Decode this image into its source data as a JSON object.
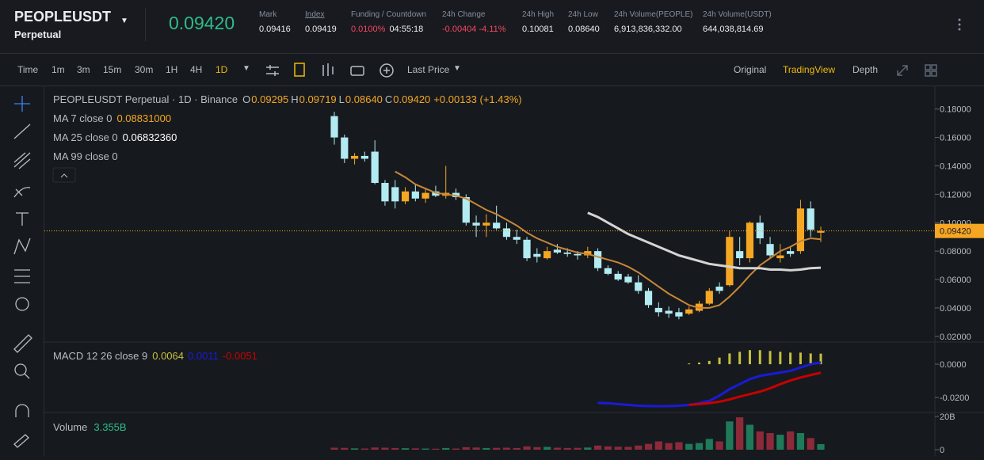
{
  "header": {
    "symbol": "PEOPLEUSDT",
    "contract": "Perpetual",
    "last_price": "0.09420",
    "stats": [
      {
        "label": "Mark",
        "value": "0.09416"
      },
      {
        "label": "Index",
        "value": "0.09419"
      },
      {
        "label": "Funding / Countdown",
        "value": "0.0100%",
        "value2": "04:55:18"
      },
      {
        "label": "24h Change",
        "value": "-0.00404 -4.11%"
      },
      {
        "label": "24h High",
        "value": "0.10081"
      },
      {
        "label": "24h Low",
        "value": "0.08640"
      },
      {
        "label": "24h Volume(PEOPLE)",
        "value": "6,913,836,332.00"
      },
      {
        "label": "24h Volume(USDT)",
        "value": "644,038,814.69"
      }
    ]
  },
  "toolbar": {
    "label": "Time",
    "intervals": [
      "1m",
      "3m",
      "15m",
      "30m",
      "1H",
      "4H",
      "1D"
    ],
    "active_interval": "1D",
    "price_type": "Last Price",
    "views": [
      "Original",
      "TradingView",
      "Depth"
    ],
    "active_view": "TradingView"
  },
  "chart_data": {
    "type": "candlestick",
    "legend": {
      "title": "PEOPLEUSDT Perpetual · 1D · Binance",
      "o_label": "O",
      "o": "0.09295",
      "h_label": "H",
      "h": "0.09719",
      "l_label": "L",
      "l": "0.08640",
      "c_label": "C",
      "c": "0.09420",
      "change": "+0.00133 (+1.43%)",
      "ma7_label": "MA 7 close 0",
      "ma7": "0.08831000",
      "ma25_label": "MA 25 close 0",
      "ma25": "0.06832360",
      "ma99_label": "MA 99 close 0"
    },
    "up_color": "#f5a623",
    "down_color": "#b2ebf2",
    "candles": [
      [
        0.175,
        0.178,
        0.155,
        0.16
      ],
      [
        0.16,
        0.162,
        0.142,
        0.145
      ],
      [
        0.145,
        0.149,
        0.141,
        0.147
      ],
      [
        0.147,
        0.15,
        0.143,
        0.145
      ],
      [
        0.15,
        0.158,
        0.127,
        0.128
      ],
      [
        0.128,
        0.13,
        0.112,
        0.115
      ],
      [
        0.125,
        0.13,
        0.11,
        0.115
      ],
      [
        0.115,
        0.125,
        0.113,
        0.122
      ],
      [
        0.122,
        0.127,
        0.115,
        0.117
      ],
      [
        0.117,
        0.124,
        0.114,
        0.121
      ],
      [
        0.122,
        0.126,
        0.118,
        0.119
      ],
      [
        0.119,
        0.14,
        0.117,
        0.121
      ],
      [
        0.121,
        0.124,
        0.116,
        0.118
      ],
      [
        0.118,
        0.12,
        0.098,
        0.1
      ],
      [
        0.1,
        0.105,
        0.09,
        0.098
      ],
      [
        0.098,
        0.106,
        0.09,
        0.1
      ],
      [
        0.1,
        0.112,
        0.095,
        0.096
      ],
      [
        0.096,
        0.1,
        0.088,
        0.09
      ],
      [
        0.09,
        0.095,
        0.085,
        0.088
      ],
      [
        0.088,
        0.09,
        0.073,
        0.075
      ],
      [
        0.078,
        0.082,
        0.072,
        0.076
      ],
      [
        0.075,
        0.083,
        0.074,
        0.08
      ],
      [
        0.081,
        0.085,
        0.078,
        0.079
      ],
      [
        0.079,
        0.082,
        0.076,
        0.078
      ],
      [
        0.078,
        0.08,
        0.074,
        0.077
      ],
      [
        0.077,
        0.083,
        0.075,
        0.08
      ],
      [
        0.08,
        0.082,
        0.066,
        0.068
      ],
      [
        0.068,
        0.07,
        0.063,
        0.064
      ],
      [
        0.064,
        0.066,
        0.059,
        0.06
      ],
      [
        0.062,
        0.064,
        0.057,
        0.058
      ],
      [
        0.058,
        0.063,
        0.05,
        0.052
      ],
      [
        0.052,
        0.054,
        0.04,
        0.042
      ],
      [
        0.04,
        0.044,
        0.034,
        0.037
      ],
      [
        0.038,
        0.041,
        0.033,
        0.036
      ],
      [
        0.037,
        0.04,
        0.032,
        0.034
      ],
      [
        0.036,
        0.041,
        0.035,
        0.039
      ],
      [
        0.038,
        0.045,
        0.037,
        0.043
      ],
      [
        0.043,
        0.054,
        0.042,
        0.052
      ],
      [
        0.055,
        0.058,
        0.05,
        0.052
      ],
      [
        0.056,
        0.094,
        0.055,
        0.09
      ],
      [
        0.08,
        0.09,
        0.07,
        0.075
      ],
      [
        0.075,
        0.101,
        0.072,
        0.1
      ],
      [
        0.1,
        0.105,
        0.085,
        0.089
      ],
      [
        0.085,
        0.09,
        0.075,
        0.077
      ],
      [
        0.075,
        0.085,
        0.072,
        0.077
      ],
      [
        0.08,
        0.083,
        0.076,
        0.078
      ],
      [
        0.08,
        0.116,
        0.078,
        0.11
      ],
      [
        0.11,
        0.115,
        0.09,
        0.095
      ],
      [
        0.09295,
        0.09719,
        0.0864,
        0.0942
      ]
    ],
    "ma_series": [
      {
        "name": "MA 7",
        "color": "#c8873a",
        "values": [
          null,
          null,
          null,
          null,
          null,
          null,
          0.136,
          0.132,
          0.127,
          0.124,
          0.121,
          0.12,
          0.119,
          0.117,
          0.113,
          0.109,
          0.106,
          0.102,
          0.098,
          0.093,
          0.089,
          0.086,
          0.083,
          0.081,
          0.079,
          0.078,
          0.076,
          0.074,
          0.072,
          0.069,
          0.065,
          0.06,
          0.055,
          0.05,
          0.046,
          0.042,
          0.04,
          0.04,
          0.042,
          0.048,
          0.055,
          0.063,
          0.07,
          0.075,
          0.08,
          0.083,
          0.087,
          0.089,
          0.0883
        ]
      },
      {
        "name": "MA 25",
        "color": "#d4d4d4",
        "values": [
          null,
          null,
          null,
          null,
          null,
          null,
          null,
          null,
          null,
          null,
          null,
          null,
          null,
          null,
          null,
          null,
          null,
          null,
          null,
          null,
          null,
          null,
          null,
          null,
          null,
          0.107,
          0.104,
          0.1,
          0.096,
          0.092,
          0.089,
          0.086,
          0.083,
          0.08,
          0.077,
          0.075,
          0.073,
          0.071,
          0.07,
          0.069,
          0.068,
          0.068,
          0.068,
          0.067,
          0.067,
          0.0665,
          0.067,
          0.068,
          0.0683
        ]
      }
    ],
    "ylim": [
      0.016,
      0.196
    ],
    "yticks": [
      {
        "value": 0.02,
        "label": "0.02000"
      },
      {
        "value": 0.04,
        "label": "0.04000"
      },
      {
        "value": 0.06,
        "label": "0.06000"
      },
      {
        "value": 0.08,
        "label": "0.08000"
      },
      {
        "value": 0.1,
        "label": "0.10000"
      },
      {
        "value": 0.12,
        "label": "0.12000"
      },
      {
        "value": 0.14,
        "label": "0.14000"
      },
      {
        "value": 0.16,
        "label": "0.16000"
      },
      {
        "value": 0.18,
        "label": "0.18000"
      }
    ],
    "price_line": {
      "value": 0.0942,
      "label": "0.09420"
    },
    "macd": {
      "label": "MACD 12 26 close 9",
      "hist_label": "0.0064",
      "macd_label": "0.0011",
      "signal_label": "-0.0051",
      "ylim": [
        -0.0286,
        0.0129
      ],
      "yticks": [
        {
          "value": 0,
          "label": "0.0000"
        },
        {
          "value": -0.02,
          "label": "-0.0200"
        }
      ],
      "hist_color": "#c8c040",
      "hist": [
        null,
        null,
        null,
        null,
        null,
        null,
        null,
        null,
        null,
        null,
        null,
        null,
        null,
        null,
        null,
        null,
        null,
        null,
        null,
        null,
        null,
        null,
        null,
        null,
        null,
        null,
        null,
        null,
        null,
        null,
        null,
        null,
        null,
        null,
        null,
        0.0005,
        0.001,
        0.002,
        0.004,
        0.0065,
        0.0075,
        0.0085,
        0.0085,
        0.008,
        0.0075,
        0.007,
        0.007,
        0.0065,
        0.0064
      ],
      "series": [
        {
          "name": "MACD",
          "color": "#1a1ad8",
          "values": [
            null,
            null,
            null,
            null,
            null,
            null,
            null,
            null,
            null,
            null,
            null,
            null,
            null,
            null,
            null,
            null,
            null,
            null,
            null,
            null,
            null,
            null,
            null,
            null,
            null,
            null,
            -0.0233,
            -0.0235,
            -0.024,
            -0.0245,
            -0.025,
            -0.0252,
            -0.0253,
            -0.0252,
            -0.025,
            -0.0245,
            -0.0235,
            -0.022,
            -0.019,
            -0.015,
            -0.012,
            -0.009,
            -0.007,
            -0.006,
            -0.005,
            -0.004,
            -0.002,
            0,
            0.0011
          ]
        },
        {
          "name": "Signal",
          "color": "#c80000",
          "values": [
            null,
            null,
            null,
            null,
            null,
            null,
            null,
            null,
            null,
            null,
            null,
            null,
            null,
            null,
            null,
            null,
            null,
            null,
            null,
            null,
            null,
            null,
            null,
            null,
            null,
            null,
            null,
            null,
            null,
            null,
            null,
            null,
            null,
            null,
            null,
            -0.0245,
            -0.024,
            -0.0234,
            -0.0226,
            -0.0212,
            -0.0195,
            -0.018,
            -0.0165,
            -0.0145,
            -0.012,
            -0.0098,
            -0.008,
            -0.0065,
            -0.0051
          ]
        }
      ]
    },
    "volume": {
      "label": "Volume",
      "value_label": "3.355B",
      "up_color": "#1f7a5a",
      "down_color": "#8c2a3a",
      "ylim": [
        0,
        20
      ],
      "yticks": [
        {
          "value": 20,
          "label": "20B"
        },
        0
      ],
      "values": [
        1.2,
        1.1,
        0.8,
        0.7,
        1.3,
        1.2,
        1,
        0.9,
        0.8,
        0.7,
        0.6,
        1,
        0.7,
        1.5,
        1.3,
        1,
        1.1,
        1.2,
        1,
        2,
        1.5,
        1.7,
        1.2,
        1,
        1.1,
        1.3,
        2.5,
        2,
        1.8,
        1.7,
        2.5,
        3.5,
        5,
        4,
        4.5,
        3.5,
        4,
        6.5,
        5,
        17,
        19.5,
        15,
        11,
        10,
        9,
        11,
        10,
        7,
        3.355
      ]
    }
  }
}
